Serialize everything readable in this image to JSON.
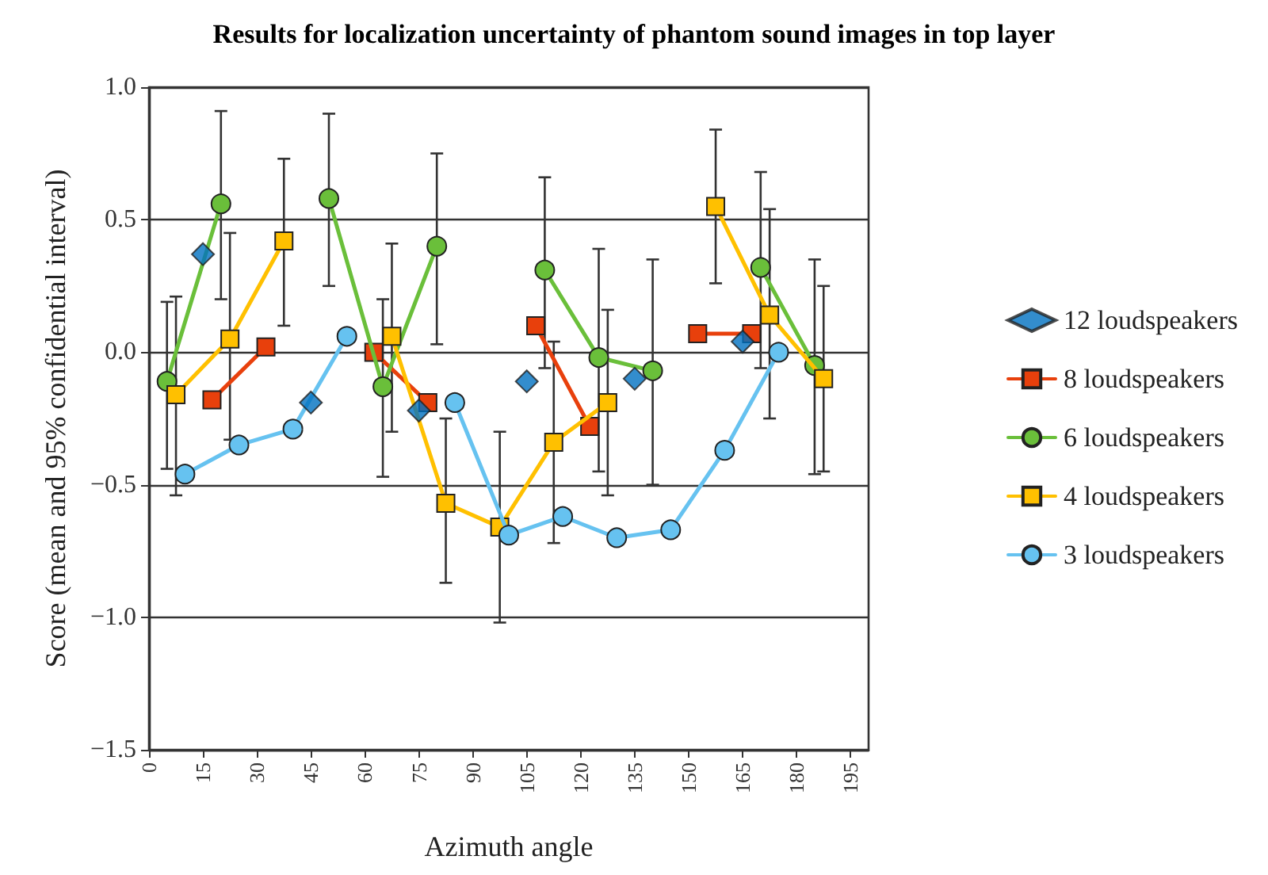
{
  "chart_data": {
    "type": "line",
    "title": "Results for localization uncertainty of phantom sound images in top layer",
    "xlabel": "Azimuth angle",
    "ylabel": "Score (mean and 95% confidential interval)",
    "xlim": [
      0,
      200
    ],
    "xticks": [
      0,
      15,
      30,
      45,
      60,
      75,
      90,
      105,
      120,
      135,
      150,
      165,
      180,
      195
    ],
    "ylim": [
      -1.5,
      1.0
    ],
    "yticks": [
      {
        "value": -1.5,
        "label": "−1.5"
      },
      {
        "value": -1,
        "label": "−1.0"
      },
      {
        "value": -0.5,
        "label": "−0.5"
      },
      {
        "value": 0,
        "label": "0.0"
      },
      {
        "value": 0.5,
        "label": "0.5"
      },
      {
        "value": 1,
        "label": "1.0"
      }
    ],
    "grid": "y",
    "legend": "right",
    "line_style": "solid",
    "series": [
      {
        "name": "12 loudspeakers",
        "type": "scatter",
        "marker": "diamond",
        "color": "#0070c0",
        "x": [
          15,
          45,
          75,
          105,
          135,
          165
        ],
        "values": [
          0.37,
          -0.19,
          -0.22,
          -0.11,
          -0.1,
          0.04
        ]
      },
      {
        "name": "8 loudspeakers",
        "marker": "square",
        "color": "#e8400c",
        "x": [
          17.5,
          32.5,
          47.5,
          62.5,
          77.5,
          92.5,
          107.5,
          122.5,
          137.5,
          152.5,
          167.5
        ],
        "values": [
          -0.18,
          0.02,
          null,
          0.0,
          -0.19,
          null,
          0.1,
          -0.28,
          null,
          0.07,
          0.07
        ]
      },
      {
        "name": "6 loudspeakers",
        "marker": "circle",
        "color": "#6abf3a",
        "x": [
          5,
          20,
          35,
          50,
          65,
          80,
          95,
          110,
          125,
          140,
          155,
          170,
          185
        ],
        "values": [
          -0.11,
          0.56,
          null,
          0.58,
          -0.13,
          0.4,
          null,
          0.31,
          -0.02,
          -0.07,
          null,
          0.32,
          -0.05
        ],
        "errors": [
          [
            -0.44,
            0.19
          ],
          [
            0.2,
            0.91
          ],
          null,
          [
            0.25,
            0.9
          ],
          [
            -0.47,
            0.2
          ],
          [
            0.03,
            0.75
          ],
          null,
          [
            -0.06,
            0.66
          ],
          [
            -0.45,
            0.39
          ],
          [
            -0.5,
            0.35
          ],
          null,
          [
            -0.06,
            0.68
          ],
          [
            -0.46,
            0.35
          ]
        ]
      },
      {
        "name": "4 loudspeakers",
        "marker": "square",
        "color": "#ffc000",
        "x": [
          7.5,
          22.5,
          37.5,
          52.5,
          67.5,
          82.5,
          97.5,
          112.5,
          127.5,
          142.5,
          157.5,
          172.5,
          187.5
        ],
        "values": [
          -0.16,
          0.05,
          0.42,
          null,
          0.06,
          -0.57,
          -0.66,
          -0.34,
          -0.19,
          null,
          0.55,
          0.14,
          -0.1
        ],
        "errors": [
          [
            -0.54,
            0.21
          ],
          [
            -0.33,
            0.45
          ],
          [
            0.1,
            0.73
          ],
          null,
          [
            -0.3,
            0.41
          ],
          [
            -0.87,
            -0.25
          ],
          [
            -1.02,
            -0.3
          ],
          [
            -0.72,
            0.04
          ],
          [
            -0.54,
            0.16
          ],
          null,
          [
            0.26,
            0.84
          ],
          [
            -0.25,
            0.54
          ],
          [
            -0.45,
            0.25
          ]
        ]
      },
      {
        "name": "3 loudspeakers",
        "marker": "circle",
        "color": "#66c2f0",
        "x": [
          10,
          25,
          40,
          55,
          70,
          85,
          100,
          115,
          130,
          145,
          160,
          175
        ],
        "values": [
          -0.46,
          -0.35,
          -0.29,
          0.06,
          null,
          -0.19,
          -0.69,
          -0.62,
          -0.7,
          -0.67,
          -0.37,
          0.0
        ]
      }
    ]
  }
}
